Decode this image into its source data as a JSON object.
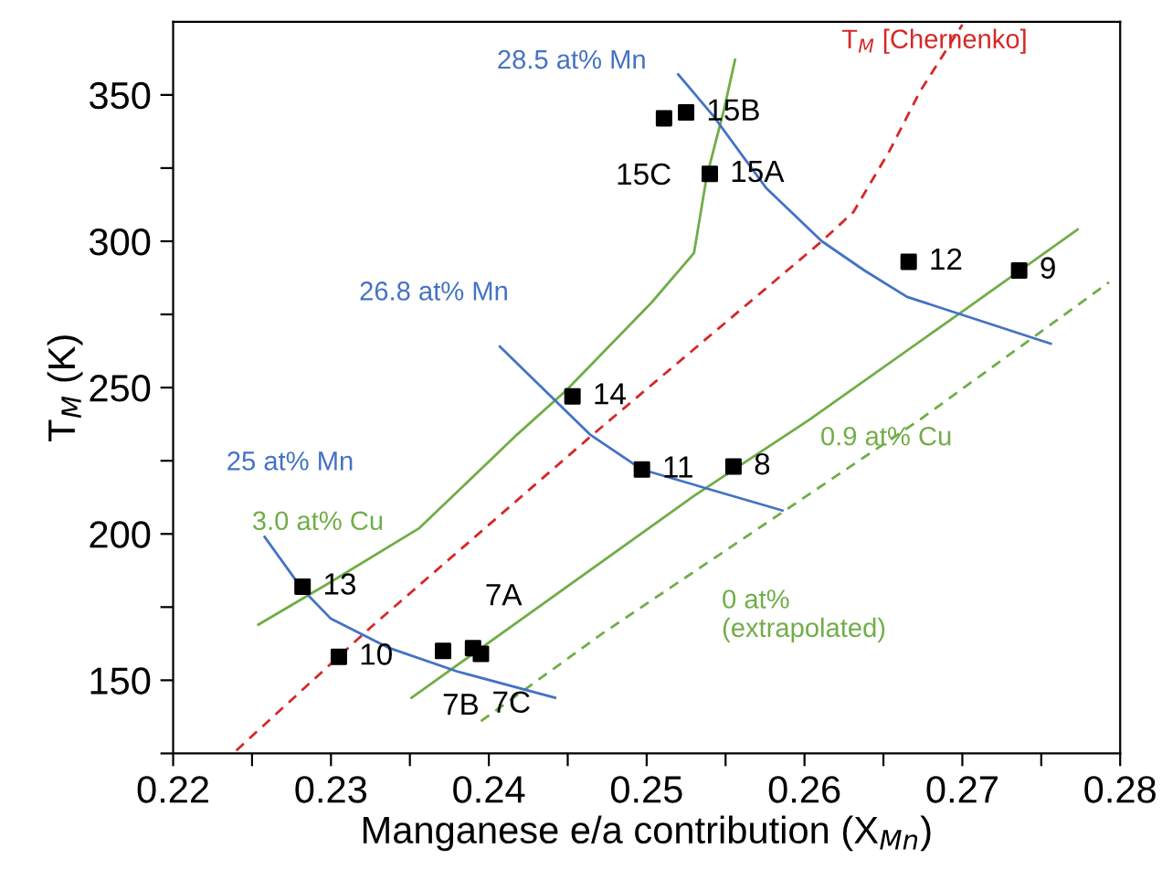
{
  "chart_data": {
    "type": "scatter",
    "xlabel": "Manganese e/a contribution (X$_{Mn}$)",
    "ylabel": "T$_{M}$ (K)",
    "xlim": [
      0.22,
      0.28
    ],
    "ylim": [
      125,
      375
    ],
    "xticks": [
      0.22,
      {
        "value": 0.225,
        "label": null
      },
      0.23,
      {
        "value": 0.235,
        "label": null
      },
      0.24,
      {
        "value": 0.245,
        "label": null
      },
      0.25,
      {
        "value": 0.255,
        "label": null
      },
      0.26,
      {
        "value": 0.265,
        "label": null
      },
      0.27,
      {
        "value": 0.275,
        "label": null
      },
      0.28
    ],
    "yticks": [
      {
        "value": 125,
        "label": null
      },
      150,
      {
        "value": 175,
        "label": null
      },
      200,
      {
        "value": 225,
        "label": null
      },
      250,
      {
        "value": 275,
        "label": null
      },
      300,
      {
        "value": 325,
        "label": null
      },
      350
    ],
    "grid": false,
    "legend": false,
    "annotations": [
      {
        "text": "13",
        "x": 0.2282,
        "y": 182
      },
      {
        "text": "10",
        "x": 0.2305,
        "y": 158
      },
      {
        "text": "7B",
        "x": 0.2371,
        "y": 160
      },
      {
        "text": "7A",
        "x": 0.239,
        "y": 161
      },
      {
        "text": "7C",
        "x": 0.2395,
        "y": 159
      },
      {
        "text": "14",
        "x": 0.2453,
        "y": 247
      },
      {
        "text": "11",
        "x": 0.2497,
        "y": 222
      },
      {
        "text": "8",
        "x": 0.2555,
        "y": 223
      },
      {
        "text": "15C",
        "x": 0.2511,
        "y": 342
      },
      {
        "text": "15B",
        "x": 0.2525,
        "y": 344
      },
      {
        "text": "15A",
        "x": 0.254,
        "y": 323
      },
      {
        "text": "12",
        "x": 0.2666,
        "y": 293
      },
      {
        "text": "9",
        "x": 0.2736,
        "y": 290
      }
    ],
    "series": [
      {
        "marker": "square",
        "color": "#000000",
        "x": [
          0.2282,
          0.2305,
          0.2371,
          0.239,
          0.2395,
          0.2453,
          0.2497,
          0.2555,
          0.2511,
          0.2525,
          0.254,
          0.2666,
          0.2736
        ],
        "values": [
          182,
          158,
          160,
          161,
          159,
          247,
          222,
          223,
          342,
          344,
          323,
          293,
          290
        ]
      },
      {
        "type": "line",
        "name": "T$_{M}$ [Chernenko]",
        "color": "#d62728",
        "line_style": "dashed",
        "x": [
          0.224,
          0.2325,
          0.2466,
          0.2611,
          0.2631,
          0.2654,
          0.2673,
          0.27
        ],
        "values": [
          126,
          168,
          234,
          300,
          310,
          331,
          351,
          374
        ]
      },
      {
        "type": "line",
        "name": "3.0 at% Cu",
        "color": "#70ad47",
        "line_style": "solid",
        "x": [
          0.2254,
          0.2298,
          0.2356,
          0.2418,
          0.2449,
          0.2503,
          0.253,
          0.2538,
          0.2549,
          0.2556
        ],
        "values": [
          169,
          183,
          202,
          234,
          249,
          279,
          296,
          322,
          345,
          362
        ]
      },
      {
        "type": "line",
        "name": "0.9 at% Cu",
        "color": "#70ad47",
        "line_style": "solid",
        "x": [
          0.2351,
          0.253,
          0.2603,
          0.27,
          0.2773
        ],
        "values": [
          144,
          213,
          239,
          276,
          304
        ]
      },
      {
        "type": "line",
        "name": "0 at%\n(extrapolated)",
        "color": "#70ad47",
        "line_style": "dashed",
        "x": [
          0.2395,
          0.2472,
          0.2673,
          0.2793
        ],
        "values": [
          136,
          166,
          239,
          286
        ]
      },
      {
        "type": "line",
        "name": "25 at% Mn",
        "color": "#4472c4",
        "line_style": "solid",
        "x": [
          0.2258,
          0.2282,
          0.23,
          0.2337,
          0.238,
          0.2442
        ],
        "values": [
          199,
          181,
          171,
          161,
          153,
          144
        ]
      },
      {
        "type": "line",
        "name": "26.8 at% Mn",
        "color": "#4472c4",
        "line_style": "solid",
        "x": [
          0.2407,
          0.2464,
          0.2497,
          0.2586
        ],
        "values": [
          264,
          234,
          222,
          208
        ]
      },
      {
        "type": "line",
        "name": "28.5 at% Mn",
        "color": "#4472c4",
        "line_style": "solid",
        "x": [
          0.252,
          0.2542,
          0.2561,
          0.2576,
          0.2611,
          0.2638,
          0.2665,
          0.2756
        ],
        "values": [
          357,
          343,
          329,
          318,
          300,
          290,
          281,
          265
        ]
      }
    ]
  }
}
